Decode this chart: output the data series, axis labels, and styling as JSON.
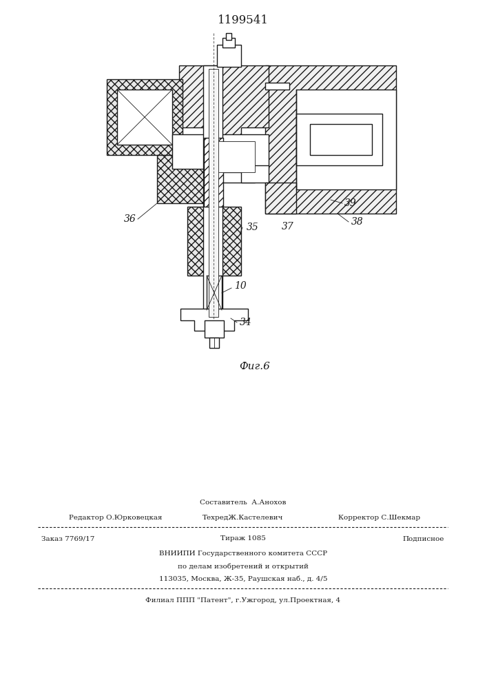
{
  "patent_number": "1199541",
  "fig_label": "Фиг.6",
  "background_color": "#ffffff",
  "line_color": "#1a1a1a",
  "footer": {
    "sestavitel": "Составитель  А.Анохов",
    "editor": "Редактор О.Юрковецкая",
    "tekhred": "ТехредЖ.Кастелевич",
    "korrektor": "Корректор С.Шекмар",
    "zakaz": "Заказ 7769/17",
    "tirazh": "Тираж 1085",
    "podpisnoe": "Подписное",
    "vniip1": "ВНИИПИ Государственного комитета СССР",
    "vniip2": "по делам изобретений и открытий",
    "vniip3": "113035, Москва, Ж-35, Раушская наб., д. 4/5",
    "filial": "Филиал ППП \"Патент\", г.Ужгород, ул.Проектная, 4"
  }
}
